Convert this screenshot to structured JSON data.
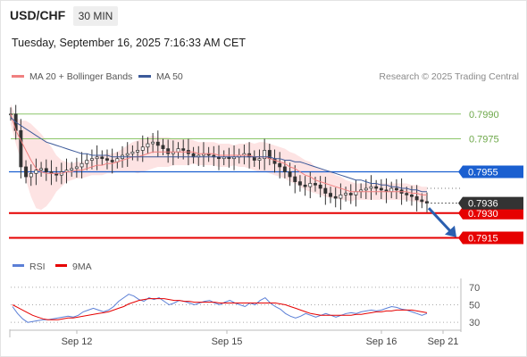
{
  "header": {
    "symbol": "USD/CHF",
    "timeframe": "30 MIN",
    "datetime": "Tuesday, September 16, 2025 7:16:33 AM CET"
  },
  "legend": {
    "ma_bollinger": "MA 20 + Bollinger Bands",
    "ma50": "MA 50",
    "copyright": "Research © 2025 Trading Central",
    "rsi": "RSI",
    "ma9": "9MA"
  },
  "colors": {
    "ma_bollinger": "#f08080",
    "bollinger_fill": "#fde3e3",
    "ma50": "#3c5a9a",
    "resistance_green": "#8cc66a",
    "pivot_blue": "#1a5fd0",
    "support_red": "#e60000",
    "last_price_bg": "#333333",
    "rsi_line": "#5b7fd6",
    "rsi_ma_line": "#e60000",
    "arrow": "#2a5fb0"
  },
  "chart_data": [
    {
      "type": "candlestick",
      "title": "USD/CHF",
      "ylim": [
        0.7905,
        0.8005
      ],
      "x_ticks": [
        "Sep 12",
        "Sep 15",
        "Sep 16",
        "Sep 21"
      ],
      "levels": [
        {
          "value": 0.799,
          "label": "0.7990",
          "kind": "resistance",
          "color": "#8cc66a"
        },
        {
          "value": 0.7975,
          "label": "0.7975",
          "kind": "resistance",
          "color": "#8cc66a"
        },
        {
          "value": 0.7955,
          "label": "0.7955",
          "kind": "pivot",
          "color": "#1a5fd0"
        },
        {
          "value": 0.793,
          "label": "0.7930",
          "kind": "support",
          "color": "#e60000"
        },
        {
          "value": 0.7915,
          "label": "0.7915",
          "kind": "support",
          "color": "#e60000"
        }
      ],
      "last_price": {
        "value": 0.7936,
        "label": "0.7936"
      },
      "forecast_arrow": "down toward 0.7915",
      "closes": [
        0.799,
        0.798,
        0.7958,
        0.7952,
        0.7954,
        0.7956,
        0.7957,
        0.7955,
        0.7954,
        0.7953,
        0.7955,
        0.7956,
        0.7957,
        0.7958,
        0.796,
        0.7962,
        0.7963,
        0.7964,
        0.7963,
        0.7962,
        0.7961,
        0.7963,
        0.7965,
        0.7966,
        0.7967,
        0.7968,
        0.797,
        0.7972,
        0.7973,
        0.7971,
        0.7969,
        0.7966,
        0.7967,
        0.7969,
        0.7968,
        0.7966,
        0.7964,
        0.7965,
        0.7966,
        0.7965,
        0.7964,
        0.7963,
        0.7964,
        0.7963,
        0.7964,
        0.7965,
        0.7966,
        0.7964,
        0.7962,
        0.7963,
        0.7968,
        0.7963,
        0.796,
        0.7958,
        0.7955,
        0.7952,
        0.7949,
        0.7947,
        0.7946,
        0.7948,
        0.7947,
        0.7945,
        0.7942,
        0.794,
        0.7939,
        0.7941,
        0.7942,
        0.7941,
        0.7943,
        0.7944,
        0.7945,
        0.7946,
        0.7945,
        0.7944,
        0.7943,
        0.7945,
        0.7944,
        0.7942,
        0.7941,
        0.794,
        0.7938,
        0.7937,
        0.7936
      ],
      "ma20": [
        0.799,
        0.798,
        0.7974,
        0.7968,
        0.7962,
        0.7957,
        0.7955,
        0.7954,
        0.7954,
        0.7954,
        0.7954,
        0.7955,
        0.7955,
        0.7956,
        0.7956,
        0.7957,
        0.7958,
        0.7959,
        0.7959,
        0.796,
        0.796,
        0.7961,
        0.7962,
        0.7963,
        0.7964,
        0.7964,
        0.7965,
        0.7966,
        0.7967,
        0.7967,
        0.7967,
        0.7967,
        0.7967,
        0.7967,
        0.7967,
        0.7967,
        0.7967,
        0.7966,
        0.7966,
        0.7966,
        0.7966,
        0.7965,
        0.7965,
        0.7965,
        0.7965,
        0.7965,
        0.7965,
        0.7965,
        0.7964,
        0.7964,
        0.7964,
        0.7963,
        0.7962,
        0.7961,
        0.796,
        0.7958,
        0.7957,
        0.7955,
        0.7953,
        0.7952,
        0.795,
        0.7949,
        0.7948,
        0.7947,
        0.7946,
        0.7945,
        0.7944,
        0.7943,
        0.7943,
        0.7943,
        0.7943,
        0.7943,
        0.7943,
        0.7943,
        0.7943,
        0.7943,
        0.7943,
        0.7943,
        0.7943,
        0.7942,
        0.7942,
        0.7941,
        0.7941
      ],
      "ma50": [
        0.7988,
        0.7985,
        0.7983,
        0.7981,
        0.7979,
        0.7977,
        0.7975,
        0.7973,
        0.7972,
        0.7971,
        0.797,
        0.7969,
        0.7968,
        0.7967,
        0.7966,
        0.7966,
        0.7965,
        0.7965,
        0.7965,
        0.7965,
        0.7964,
        0.7964,
        0.7964,
        0.7964,
        0.7964,
        0.7964,
        0.7964,
        0.7964,
        0.7964,
        0.7964,
        0.7964,
        0.7964,
        0.7964,
        0.7964,
        0.7964,
        0.7964,
        0.7964,
        0.7964,
        0.7964,
        0.7964,
        0.7964,
        0.7964,
        0.7964,
        0.7964,
        0.7964,
        0.7964,
        0.7964,
        0.7964,
        0.7964,
        0.7964,
        0.7964,
        0.7964,
        0.7963,
        0.7963,
        0.7962,
        0.7962,
        0.7961,
        0.7961,
        0.796,
        0.7959,
        0.7958,
        0.7957,
        0.7956,
        0.7955,
        0.7954,
        0.7953,
        0.7952,
        0.7951,
        0.795,
        0.795,
        0.7949,
        0.7948,
        0.7948,
        0.7947,
        0.7947,
        0.7946,
        0.7946,
        0.7945,
        0.7945,
        0.7944,
        0.7944,
        0.7943,
        0.7943
      ],
      "bb_width": [
        0.0006,
        0.0008,
        0.0012,
        0.0018,
        0.0022,
        0.0024,
        0.0023,
        0.002,
        0.0016,
        0.0011,
        0.0008,
        0.0006,
        0.0005,
        0.0005,
        0.0005,
        0.0005,
        0.0005,
        0.0006,
        0.0006,
        0.0006,
        0.0006,
        0.0006,
        0.0007,
        0.0008,
        0.0009,
        0.001,
        0.001,
        0.001,
        0.001,
        0.0009,
        0.0009,
        0.0009,
        0.0008,
        0.0008,
        0.0008,
        0.0008,
        0.0007,
        0.0007,
        0.0007,
        0.0007,
        0.0007,
        0.0007,
        0.0007,
        0.0007,
        0.0006,
        0.0007,
        0.0007,
        0.0008,
        0.0008,
        0.0009,
        0.0009,
        0.0009,
        0.0009,
        0.0009,
        0.0009,
        0.0009,
        0.0009,
        0.0009,
        0.0009,
        0.0009,
        0.0008,
        0.0008,
        0.0008,
        0.0008,
        0.0007,
        0.0007,
        0.0006,
        0.0006,
        0.0005,
        0.0005,
        0.0005,
        0.0005,
        0.0005,
        0.0005,
        0.0005,
        0.0005,
        0.0005,
        0.0005,
        0.0005,
        0.0005,
        0.0005,
        0.0005,
        0.0005
      ]
    },
    {
      "type": "line",
      "title": "RSI",
      "ylim": [
        20,
        80
      ],
      "y_ticks": [
        70,
        50,
        30
      ],
      "series": [
        {
          "name": "RSI",
          "values": [
            48,
            40,
            34,
            30,
            31,
            32,
            33,
            33,
            34,
            35,
            36,
            37,
            36,
            38,
            42,
            44,
            46,
            44,
            42,
            44,
            48,
            54,
            58,
            62,
            60,
            56,
            54,
            58,
            56,
            58,
            54,
            50,
            52,
            55,
            54,
            52,
            50,
            52,
            54,
            55,
            52,
            50,
            53,
            55,
            52,
            50,
            48,
            52,
            50,
            55,
            58,
            52,
            48,
            45,
            40,
            37,
            35,
            37,
            40,
            38,
            36,
            38,
            40,
            38,
            36,
            38,
            40,
            41,
            40,
            42,
            43,
            44,
            43,
            44,
            46,
            48,
            47,
            45,
            44,
            42,
            40,
            38,
            40
          ]
        },
        {
          "name": "9MA",
          "values": [
            50,
            47,
            44,
            41,
            38,
            36,
            34,
            33,
            33,
            33,
            34,
            35,
            35,
            36,
            37,
            38,
            39,
            40,
            41,
            42,
            44,
            46,
            48,
            51,
            53,
            55,
            56,
            57,
            57,
            57,
            57,
            56,
            55,
            55,
            54,
            54,
            53,
            53,
            53,
            53,
            53,
            52,
            52,
            52,
            52,
            52,
            52,
            52,
            52,
            52,
            52,
            52,
            52,
            51,
            50,
            48,
            46,
            44,
            42,
            40,
            39,
            38,
            38,
            38,
            38,
            38,
            38,
            38,
            39,
            39,
            40,
            41,
            42,
            42,
            43,
            43,
            44,
            44,
            44,
            44,
            43,
            42,
            41
          ]
        }
      ]
    }
  ]
}
